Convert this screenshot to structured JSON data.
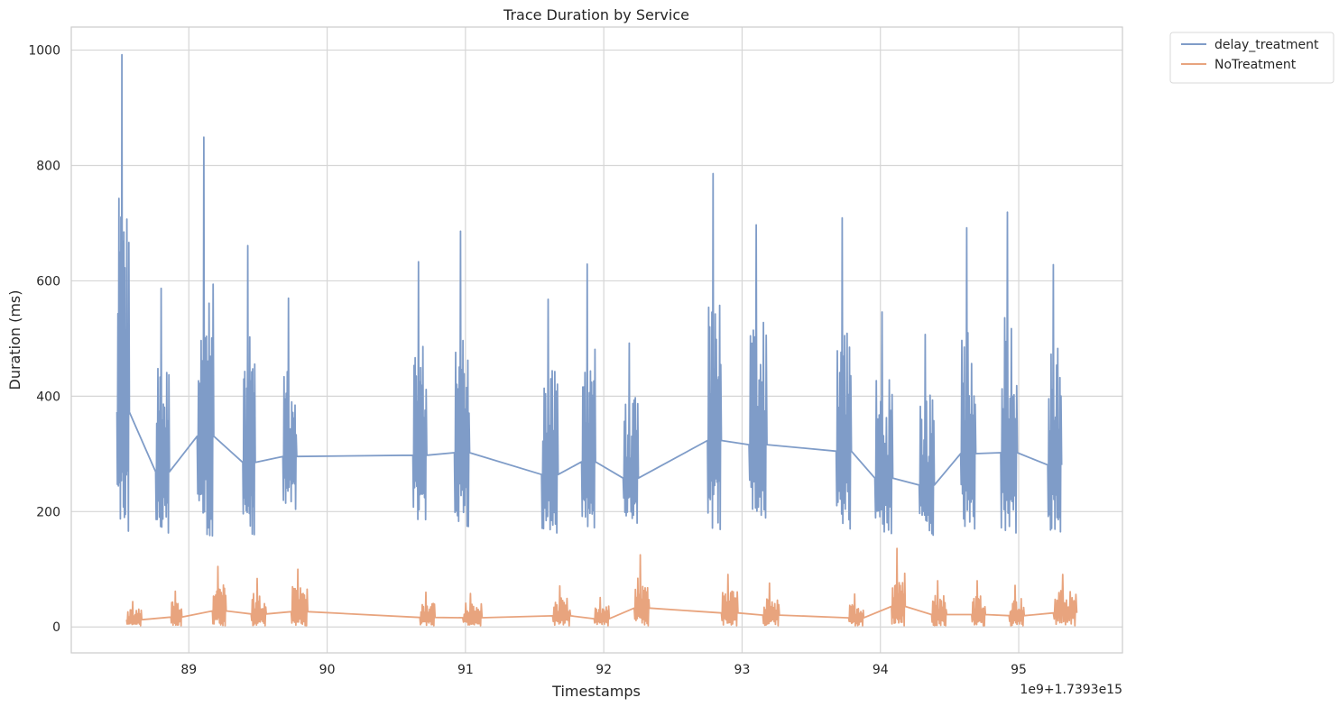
{
  "chart_data": {
    "type": "line",
    "title": "Trace Duration by Service",
    "xlabel": "Timestamps",
    "ylabel": "Duration (ms)",
    "x_offset_label": "1e9+1.7393e15",
    "xlim": [
      88.15,
      95.75
    ],
    "ylim": [
      -45,
      1040
    ],
    "x_ticks": [
      89,
      90,
      91,
      92,
      93,
      94,
      95
    ],
    "y_ticks": [
      0,
      200,
      400,
      600,
      800,
      1000
    ],
    "grid": true,
    "legend_placement": "outside-top-right",
    "series": [
      {
        "name": "delay_treatment",
        "color": "#7f9cc8",
        "bursts": [
          {
            "x": [
              88.48,
              88.57
            ],
            "min": 166,
            "max": 992
          },
          {
            "x": [
              88.76,
              88.86
            ],
            "min": 163,
            "max": 587
          },
          {
            "x": [
              89.06,
              89.18
            ],
            "min": 158,
            "max": 849
          },
          {
            "x": [
              89.39,
              89.48
            ],
            "min": 160,
            "max": 661
          },
          {
            "x": [
              89.68,
              89.78
            ],
            "min": 204,
            "max": 570
          },
          {
            "x": [
              90.62,
              90.72
            ],
            "min": 186,
            "max": 633
          },
          {
            "x": [
              90.92,
              91.03
            ],
            "min": 174,
            "max": 686
          },
          {
            "x": [
              91.55,
              91.67
            ],
            "min": 163,
            "max": 568
          },
          {
            "x": [
              91.84,
              91.94
            ],
            "min": 172,
            "max": 629
          },
          {
            "x": [
              92.14,
              92.25
            ],
            "min": 180,
            "max": 492
          },
          {
            "x": [
              92.75,
              92.85
            ],
            "min": 169,
            "max": 786
          },
          {
            "x": [
              93.05,
              93.18
            ],
            "min": 189,
            "max": 697
          },
          {
            "x": [
              93.68,
              93.79
            ],
            "min": 170,
            "max": 709
          },
          {
            "x": [
              93.96,
              94.09
            ],
            "min": 162,
            "max": 546
          },
          {
            "x": [
              94.28,
              94.39
            ],
            "min": 159,
            "max": 507
          },
          {
            "x": [
              94.58,
              94.69
            ],
            "min": 170,
            "max": 692
          },
          {
            "x": [
              94.87,
              94.99
            ],
            "min": 163,
            "max": 719
          },
          {
            "x": [
              95.21,
              95.31
            ],
            "min": 165,
            "max": 628
          }
        ]
      },
      {
        "name": "NoTreatment",
        "color": "#e8a47e",
        "bursts": [
          {
            "x": [
              88.55,
              88.66
            ],
            "min": 2,
            "max": 44
          },
          {
            "x": [
              88.87,
              88.95
            ],
            "min": 2,
            "max": 62
          },
          {
            "x": [
              89.17,
              89.27
            ],
            "min": 2,
            "max": 105
          },
          {
            "x": [
              89.45,
              89.56
            ],
            "min": 2,
            "max": 84
          },
          {
            "x": [
              89.74,
              89.86
            ],
            "min": 2,
            "max": 100
          },
          {
            "x": [
              90.67,
              90.78
            ],
            "min": 2,
            "max": 60
          },
          {
            "x": [
              90.98,
              91.12
            ],
            "min": 2,
            "max": 58
          },
          {
            "x": [
              91.63,
              91.76
            ],
            "min": 2,
            "max": 71
          },
          {
            "x": [
              91.93,
              92.04
            ],
            "min": 2,
            "max": 51
          },
          {
            "x": [
              92.22,
              92.33
            ],
            "min": 2,
            "max": 125
          },
          {
            "x": [
              92.85,
              92.97
            ],
            "min": 2,
            "max": 91
          },
          {
            "x": [
              93.15,
              93.27
            ],
            "min": 2,
            "max": 76
          },
          {
            "x": [
              93.77,
              93.88
            ],
            "min": 2,
            "max": 57
          },
          {
            "x": [
              94.08,
              94.18
            ],
            "min": 2,
            "max": 136
          },
          {
            "x": [
              94.37,
              94.48
            ],
            "min": 2,
            "max": 80
          },
          {
            "x": [
              94.66,
              94.76
            ],
            "min": 2,
            "max": 80
          },
          {
            "x": [
              94.93,
              95.04
            ],
            "min": 2,
            "max": 72
          },
          {
            "x": [
              95.25,
              95.42
            ],
            "min": 2,
            "max": 91
          }
        ]
      }
    ]
  }
}
